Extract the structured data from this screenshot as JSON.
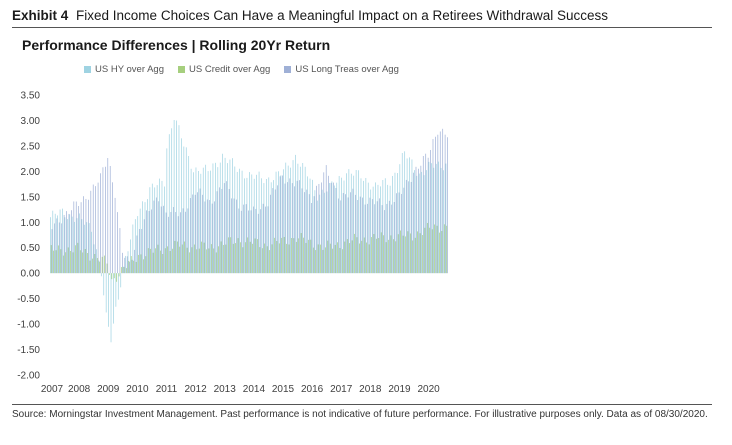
{
  "exhibit": {
    "number": "Exhibit 4",
    "title": "Fixed Income Choices Can Have a Meaningful Impact on a Retirees Withdrawal Success"
  },
  "source_note": "Source: Morningstar Investment Management. Past performance is not indicative of future performance. For illustrative purposes only. Data as of 08/30/2020.",
  "chart_data": {
    "type": "bar",
    "title": "Performance Differences | Rolling 20Yr Return",
    "xlabel": "",
    "ylabel": "",
    "ylim": [
      -2.0,
      3.5
    ],
    "yticks": [
      3.5,
      3.0,
      2.5,
      2.0,
      1.5,
      1.0,
      0.5,
      0.0,
      -0.5,
      -1.0,
      -1.5,
      -2.0
    ],
    "ytick_labels": [
      "3.50",
      "3.00",
      "2.50",
      "2.00",
      "1.50",
      "1.00",
      "0.50",
      "0.00",
      "-0.50",
      "-1.00",
      "-1.50",
      "-2.00"
    ],
    "xtick_labels": [
      "2007",
      "2008",
      "2009",
      "2010",
      "2011",
      "2012",
      "2013",
      "2014",
      "2015",
      "2016",
      "2017",
      "2018",
      "2019",
      "2020"
    ],
    "x_range": [
      "2007-01",
      "2020-08"
    ],
    "frequency": "monthly",
    "grid": false,
    "legend_position": "top",
    "series": [
      {
        "name": "US HY over Agg",
        "color": "#9fd3e2",
        "knots": [
          [
            "2007-01",
            1.1
          ],
          [
            "2007-06",
            1.2
          ],
          [
            "2008-01",
            1.05
          ],
          [
            "2008-06",
            0.9
          ],
          [
            "2008-10",
            0.0
          ],
          [
            "2008-12",
            -0.9
          ],
          [
            "2009-02",
            -1.3
          ],
          [
            "2009-04",
            -0.7
          ],
          [
            "2009-07",
            0.1
          ],
          [
            "2010-01",
            1.2
          ],
          [
            "2010-06",
            1.65
          ],
          [
            "2010-12",
            1.8
          ],
          [
            "2011-01",
            2.5
          ],
          [
            "2011-04",
            3.1
          ],
          [
            "2011-08",
            2.5
          ],
          [
            "2011-12",
            2.05
          ],
          [
            "2012-06",
            2.0
          ],
          [
            "2012-12",
            2.3
          ],
          [
            "2013-06",
            2.05
          ],
          [
            "2013-12",
            1.9
          ],
          [
            "2014-06",
            1.85
          ],
          [
            "2014-12",
            1.95
          ],
          [
            "2015-06",
            2.3
          ],
          [
            "2015-12",
            1.85
          ],
          [
            "2016-03",
            1.55
          ],
          [
            "2016-09",
            1.7
          ],
          [
            "2017-03",
            2.0
          ],
          [
            "2017-09",
            1.9
          ],
          [
            "2018-03",
            1.7
          ],
          [
            "2018-09",
            1.8
          ],
          [
            "2019-03",
            2.35
          ],
          [
            "2019-09",
            1.95
          ],
          [
            "2020-02",
            2.1
          ],
          [
            "2020-08",
            2.15
          ]
        ]
      },
      {
        "name": "US Credit over Agg",
        "color": "#a6cf7e",
        "knots": [
          [
            "2007-01",
            0.45
          ],
          [
            "2007-12",
            0.48
          ],
          [
            "2008-06",
            0.35
          ],
          [
            "2008-12",
            0.2
          ],
          [
            "2009-02",
            -0.15
          ],
          [
            "2009-06",
            0.05
          ],
          [
            "2010-01",
            0.35
          ],
          [
            "2010-12",
            0.5
          ],
          [
            "2011-06",
            0.55
          ],
          [
            "2012-06",
            0.5
          ],
          [
            "2013-06",
            0.65
          ],
          [
            "2014-06",
            0.55
          ],
          [
            "2015-06",
            0.7
          ],
          [
            "2016-06",
            0.5
          ],
          [
            "2017-06",
            0.65
          ],
          [
            "2018-06",
            0.7
          ],
          [
            "2019-06",
            0.75
          ],
          [
            "2020-02",
            0.9
          ],
          [
            "2020-08",
            0.92
          ]
        ]
      },
      {
        "name": "US Long Treas over Agg",
        "color": "#9fb0d6",
        "knots": [
          [
            "2007-01",
            0.9
          ],
          [
            "2007-06",
            1.15
          ],
          [
            "2008-01",
            1.4
          ],
          [
            "2008-09",
            1.85
          ],
          [
            "2008-12",
            2.3
          ],
          [
            "2009-03",
            1.6
          ],
          [
            "2009-06",
            0.4
          ],
          [
            "2009-09",
            0.15
          ],
          [
            "2010-01",
            0.9
          ],
          [
            "2010-09",
            1.5
          ],
          [
            "2010-12",
            1.2
          ],
          [
            "2011-06",
            1.15
          ],
          [
            "2011-12",
            1.6
          ],
          [
            "2012-06",
            1.4
          ],
          [
            "2012-12",
            1.75
          ],
          [
            "2013-06",
            1.35
          ],
          [
            "2013-12",
            1.2
          ],
          [
            "2014-06",
            1.4
          ],
          [
            "2014-12",
            1.9
          ],
          [
            "2015-06",
            1.75
          ],
          [
            "2015-12",
            1.5
          ],
          [
            "2016-06",
            2.0
          ],
          [
            "2016-12",
            1.5
          ],
          [
            "2017-06",
            1.55
          ],
          [
            "2017-12",
            1.4
          ],
          [
            "2018-06",
            1.35
          ],
          [
            "2018-12",
            1.5
          ],
          [
            "2019-06",
            2.0
          ],
          [
            "2019-12",
            2.3
          ],
          [
            "2020-04",
            2.85
          ],
          [
            "2020-08",
            2.7
          ]
        ]
      }
    ]
  }
}
